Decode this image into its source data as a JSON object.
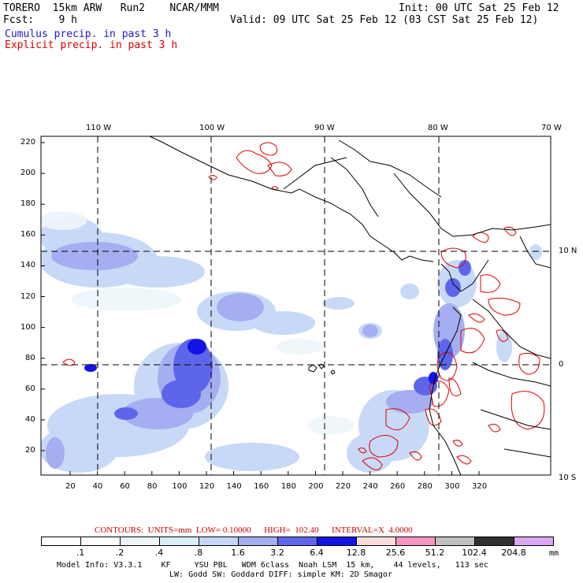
{
  "header": {
    "model": "TORERO  15km ARW   Run2    NCAR/MMM",
    "init": "Init: 00 UTC Sat 25 Feb 12",
    "fcst": "Fcst:    9 h",
    "valid": "Valid: 09 UTC Sat 25 Feb 12 (03 CST Sat 25 Feb 12)",
    "legend_cumulus": "Cumulus precip. in past 3 h",
    "legend_explicit": "Explicit precip. in past 3 h"
  },
  "colors": {
    "cumulus": "#1a1acc",
    "explicit": "#dd0000"
  },
  "map": {
    "lon_labels": [
      "110 W",
      "100 W",
      "90 W",
      "80 W",
      "70 W"
    ],
    "lat_labels": [
      "10 N",
      "0",
      "10 S"
    ],
    "y_ticks": [
      "220",
      "200",
      "180",
      "160",
      "140",
      "120",
      "100",
      "80",
      "60",
      "40",
      "20"
    ],
    "x_ticks": [
      "20",
      "40",
      "60",
      "80",
      "100",
      "120",
      "140",
      "160",
      "180",
      "200",
      "220",
      "240",
      "260",
      "280",
      "300",
      "320"
    ]
  },
  "contours_line": "CONTOURS:  UNITS=mm  LOW= 0.10000      HIGH=  102.40      INTERVAL=X  4.0000",
  "colorbar": {
    "labels": [
      ".1",
      ".2",
      ".4",
      ".8",
      "1.6",
      "3.2",
      "6.4",
      "12.8",
      "25.6",
      "51.2",
      "102.4",
      "204.8"
    ],
    "unit": "mm",
    "colors": [
      "#ffffff",
      "#ffffff",
      "#eef6fb",
      "#daeefa",
      "#c5d8f6",
      "#a4aef0",
      "#5d66ea",
      "#1414e6",
      "#fbdcdc",
      "#f496c0",
      "#c0c0c0",
      "#303030",
      "#d8a8f4"
    ]
  },
  "footer": {
    "line1": "Model Info: V3.3.1    KF     YSU PBL   WDM 6class  Noah LSM  15 km,    44 levels,   113 sec",
    "line2": "LW: Godd SW: Goddard DIFF: simple KM: 2D Smagor"
  }
}
